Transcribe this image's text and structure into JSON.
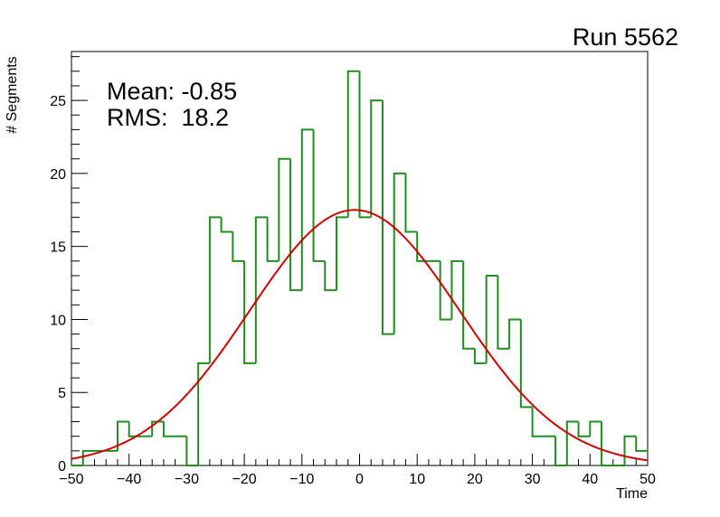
{
  "chart_data": {
    "type": "histogram",
    "title": "Run 5562",
    "xlabel": "Time",
    "ylabel": "# Segments",
    "xlim": [
      -50,
      50
    ],
    "ylim": [
      0,
      28.35
    ],
    "bin_width": 2,
    "bin_edges_start": -50,
    "counts": [
      0,
      1,
      1,
      1,
      3,
      2,
      2,
      3,
      2,
      2,
      0,
      7,
      17,
      16,
      14,
      7,
      17,
      14,
      21,
      12,
      23,
      14,
      12,
      17,
      27,
      17,
      25,
      9,
      20,
      16,
      14,
      14,
      10,
      14,
      8,
      7,
      13,
      8,
      10,
      4,
      2,
      2,
      0,
      3,
      2,
      3,
      0,
      0,
      2,
      1
    ],
    "fit": {
      "function": "gaussian",
      "amplitude": 17.5,
      "mean": -0.85,
      "sigma": 18.2
    },
    "stats": {
      "mean_label": "Mean: -0.85",
      "rms_label": "RMS:  18.2"
    },
    "x_ticks": [
      -50,
      -40,
      -30,
      -20,
      -10,
      0,
      10,
      20,
      30,
      40,
      50
    ],
    "y_ticks": [
      0,
      5,
      10,
      15,
      20,
      25
    ],
    "colors": {
      "histogram": "#228b22",
      "fit": "#cc0000",
      "axes": "#000000"
    }
  }
}
